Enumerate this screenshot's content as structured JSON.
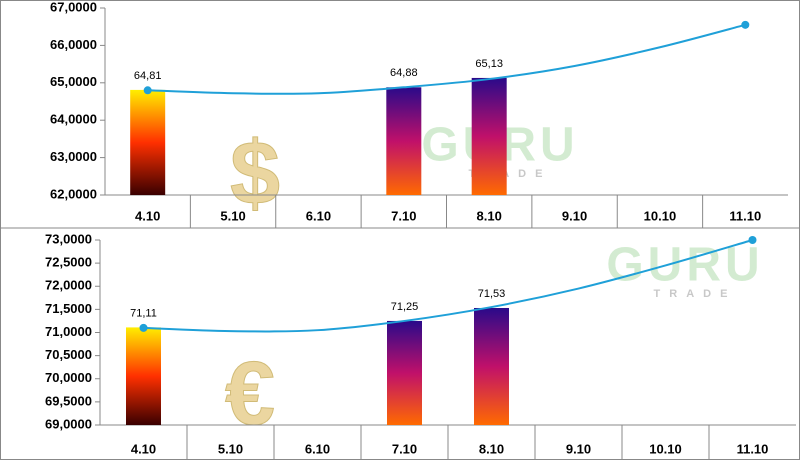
{
  "chart_data": [
    {
      "type": "bar-trend",
      "symbol": "$",
      "watermark": "GURU",
      "watermark_sub": "TRADE",
      "categories": [
        "4.10",
        "5.10",
        "6.10",
        "7.10",
        "8.10",
        "9.10",
        "10.10",
        "11.10"
      ],
      "ylim": [
        62,
        67
      ],
      "yticks": [
        {
          "value": 62,
          "label": "62,0000"
        },
        {
          "value": 63,
          "label": "63,0000"
        },
        {
          "value": 64,
          "label": "64,0000"
        },
        {
          "value": 65,
          "label": "65,0000"
        },
        {
          "value": 66,
          "label": "66,0000"
        },
        {
          "value": 67,
          "label": "67,0000"
        }
      ],
      "series": [
        {
          "type": "bar",
          "values": [
            64.81,
            null,
            null,
            64.88,
            65.13,
            null,
            null,
            null
          ],
          "value_labels": [
            "64,81",
            null,
            null,
            "64,88",
            "65,13",
            null,
            null,
            null
          ],
          "colors": [
            [
              "#ffee00",
              "#ff3000",
              "#3a0000"
            ],
            null,
            null,
            [
              "#2a0a8a",
              "#c0106a",
              "#ff6a00"
            ],
            [
              "#2a0a8a",
              "#c0106a",
              "#ff6a00"
            ],
            null,
            null,
            null
          ]
        },
        {
          "type": "line",
          "color": "#1fa0d8",
          "values": [
            64.8,
            64.72,
            64.72,
            64.88,
            65.1,
            65.45,
            65.95,
            66.55
          ],
          "markers": [
            0,
            7
          ]
        }
      ]
    },
    {
      "type": "bar-trend",
      "symbol": "€",
      "watermark": "GURU",
      "watermark_sub": "TRADE",
      "categories": [
        "4.10",
        "5.10",
        "6.10",
        "7.10",
        "8.10",
        "9.10",
        "10.10",
        "11.10"
      ],
      "ylim": [
        69,
        73
      ],
      "yticks": [
        {
          "value": 69,
          "label": "69,0000"
        },
        {
          "value": 69.5,
          "label": "69,5000"
        },
        {
          "value": 70,
          "label": "70,0000"
        },
        {
          "value": 70.5,
          "label": "70,5000"
        },
        {
          "value": 71,
          "label": "71,0000"
        },
        {
          "value": 71.5,
          "label": "71,5000"
        },
        {
          "value": 72,
          "label": "72,0000"
        },
        {
          "value": 72.5,
          "label": "72,5000"
        },
        {
          "value": 73,
          "label": "73,0000"
        }
      ],
      "series": [
        {
          "type": "bar",
          "values": [
            71.11,
            null,
            null,
            71.25,
            71.53,
            null,
            null,
            null
          ],
          "value_labels": [
            "71,11",
            null,
            null,
            "71,25",
            "71,53",
            null,
            null,
            null
          ],
          "colors": [
            [
              "#ffee00",
              "#ff3000",
              "#3a0000"
            ],
            null,
            null,
            [
              "#2a0a8a",
              "#c0106a",
              "#ff6a00"
            ],
            [
              "#2a0a8a",
              "#c0106a",
              "#ff6a00"
            ],
            null,
            null,
            null
          ]
        },
        {
          "type": "line",
          "color": "#1fa0d8",
          "values": [
            71.1,
            71.03,
            71.05,
            71.25,
            71.55,
            71.95,
            72.45,
            73.0
          ],
          "markers": [
            0,
            7
          ]
        }
      ]
    }
  ]
}
